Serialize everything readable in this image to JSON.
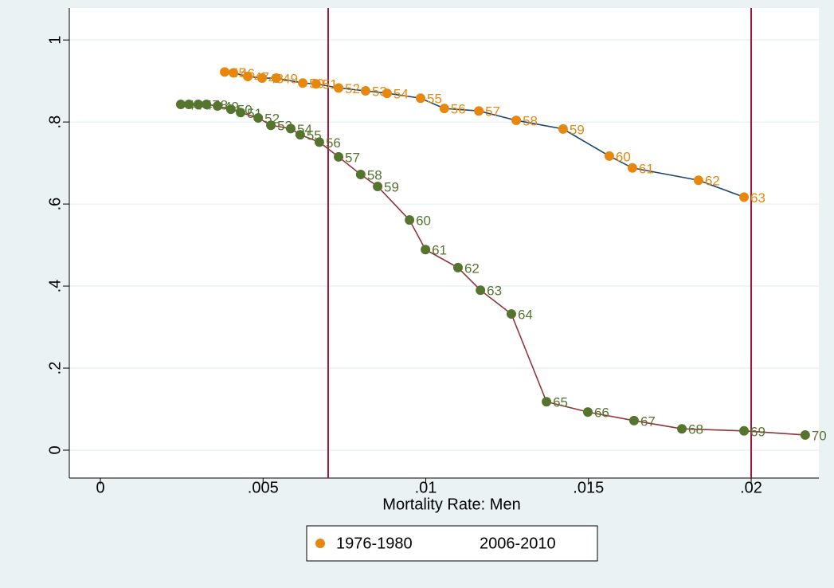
{
  "chart_data": {
    "type": "line",
    "x_label": "Mortality Rate: Men",
    "xlim": [
      -0.000955,
      0.02208
    ],
    "ylim": [
      -0.068,
      1.078
    ],
    "xticks": [
      0,
      {
        "value": 0.005,
        "label": ".005"
      },
      {
        "value": 0.01,
        "label": ".01"
      },
      {
        "value": 0.015,
        "label": ".015"
      },
      {
        "value": 0.02,
        "label": ".02"
      }
    ],
    "yticks": [
      0,
      {
        "value": 0.2,
        "label": ".2"
      },
      {
        "value": 0.4,
        "label": ".4"
      },
      {
        "value": 0.6,
        "label": ".6"
      },
      {
        "value": 0.8,
        "label": ".8"
      },
      1
    ],
    "grid": true,
    "xlines": [
      0.007,
      0.02
    ],
    "xline_color": "#a0143c",
    "legend": "bottom",
    "series": [
      {
        "name": "1976-1980",
        "color": "#e8870e",
        "line_color": "#1a476f",
        "x": [
          0.00382,
          0.00409,
          0.00453,
          0.00497,
          0.00541,
          0.00622,
          0.00663,
          0.00732,
          0.00815,
          0.00881,
          0.00984,
          0.01057,
          0.01163,
          0.01278,
          0.01422,
          0.01564,
          0.01635,
          0.01838,
          0.01978
        ],
        "values": [
          0.922,
          0.92,
          0.911,
          0.907,
          0.907,
          0.895,
          0.893,
          0.883,
          0.876,
          0.87,
          0.858,
          0.833,
          0.827,
          0.804,
          0.783,
          0.717,
          0.688,
          0.658,
          0.617
        ],
        "point_labels": [
          45,
          46,
          47,
          48,
          49,
          50,
          51,
          52,
          53,
          54,
          55,
          56,
          57,
          58,
          59,
          60,
          61,
          62,
          63
        ]
      },
      {
        "name": "2006-2010",
        "color": "#55752f",
        "line_color": "#90353b",
        "x": [
          0.00247,
          0.00272,
          0.00301,
          0.00326,
          0.0036,
          0.00401,
          0.00431,
          0.00485,
          0.00524,
          0.00585,
          0.00614,
          0.00673,
          0.00732,
          0.008,
          0.00852,
          0.0095,
          0.00999,
          0.01099,
          0.01168,
          0.01263,
          0.01371,
          0.01498,
          0.0164,
          0.01787,
          0.01978,
          0.02166
        ],
        "values": [
          0.843,
          0.843,
          0.843,
          0.843,
          0.839,
          0.831,
          0.823,
          0.81,
          0.792,
          0.784,
          0.769,
          0.751,
          0.715,
          0.672,
          0.643,
          0.561,
          0.489,
          0.445,
          0.39,
          0.332,
          0.118,
          0.093,
          0.072,
          0.052,
          0.047,
          0.037
        ],
        "point_labels": [
          45,
          46,
          47,
          48,
          49,
          50,
          51,
          52,
          53,
          54,
          55,
          56,
          57,
          58,
          59,
          60,
          61,
          62,
          63,
          64,
          65,
          66,
          67,
          68,
          69,
          70
        ]
      }
    ]
  }
}
